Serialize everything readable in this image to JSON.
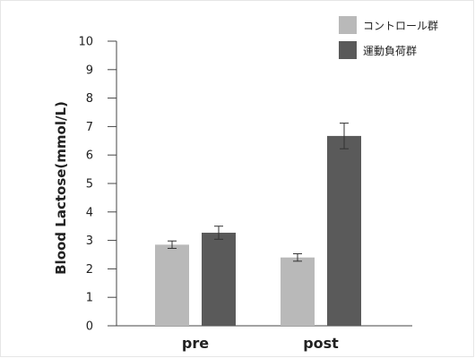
{
  "chart_data": {
    "type": "bar",
    "categories": [
      "pre",
      "post"
    ],
    "series": [
      {
        "name": "コントロール群",
        "color": "#b9b9b9",
        "values": [
          2.85,
          2.4
        ],
        "errors": [
          0.13,
          0.13
        ]
      },
      {
        "name": "運動負荷群",
        "color": "#5a5a5a",
        "values": [
          3.27,
          6.67
        ],
        "errors": [
          0.23,
          0.45
        ]
      }
    ],
    "title": "",
    "xlabel": "",
    "ylabel": "Blood Lactose(mmol/L)",
    "ylim": [
      0,
      10
    ],
    "yticks": [
      0,
      1,
      2,
      3,
      4,
      5,
      6,
      7,
      8,
      9,
      10
    ],
    "grid": false,
    "legend_position": "top-right"
  }
}
